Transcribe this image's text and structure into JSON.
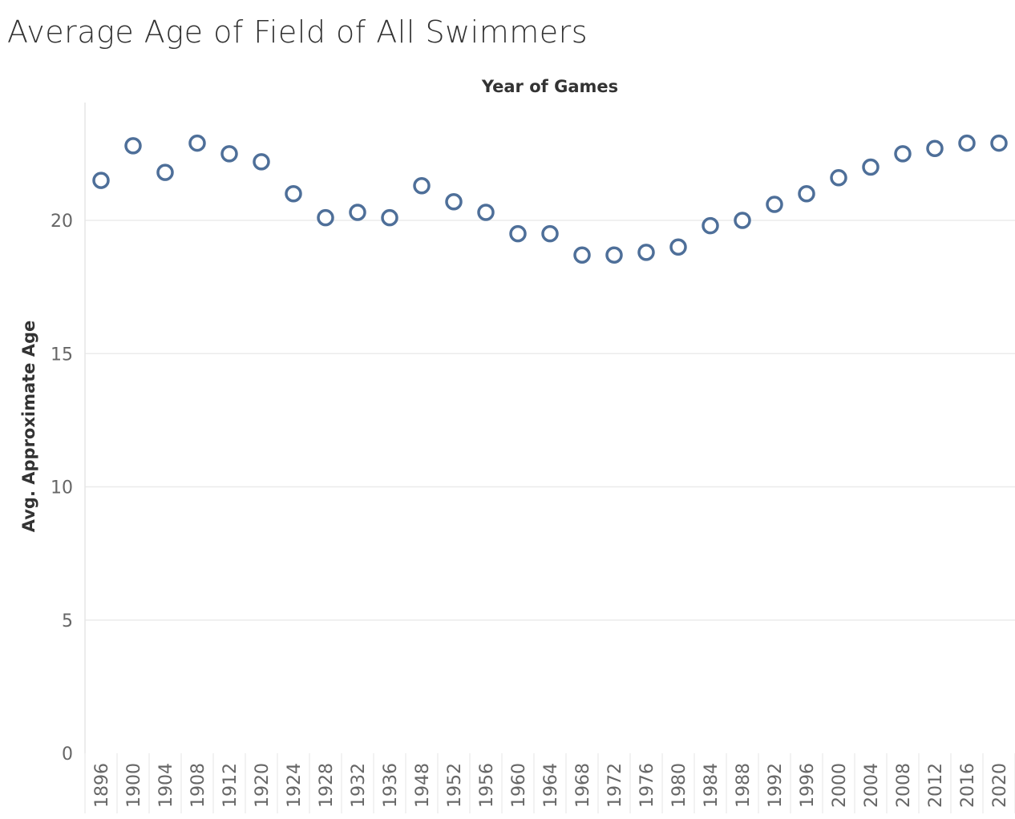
{
  "chart_data": {
    "type": "scatter",
    "title": "Average Age of Field of All Swimmers",
    "xlabel": "Year of Games",
    "ylabel": "Avg. Approximate Age",
    "x_axis_position": "top",
    "categories": [
      "1896",
      "1900",
      "1904",
      "1908",
      "1912",
      "1920",
      "1924",
      "1928",
      "1932",
      "1936",
      "1948",
      "1952",
      "1956",
      "1960",
      "1964",
      "1968",
      "1972",
      "1976",
      "1980",
      "1984",
      "1988",
      "1992",
      "1996",
      "2000",
      "2004",
      "2008",
      "2012",
      "2016",
      "2020"
    ],
    "values": [
      21.5,
      22.8,
      21.8,
      22.9,
      22.5,
      22.2,
      21.0,
      20.1,
      20.3,
      20.1,
      21.3,
      20.7,
      20.3,
      19.5,
      19.5,
      18.7,
      18.7,
      18.8,
      19.0,
      19.8,
      20.0,
      20.6,
      21.0,
      21.6,
      22.0,
      22.5,
      22.7,
      22.9,
      22.9
    ],
    "yticks": [
      0,
      5,
      10,
      15,
      20
    ],
    "ylim": [
      0,
      24.4
    ],
    "grid": true,
    "marker": "hollow-circle",
    "color": "#4e6f99"
  }
}
